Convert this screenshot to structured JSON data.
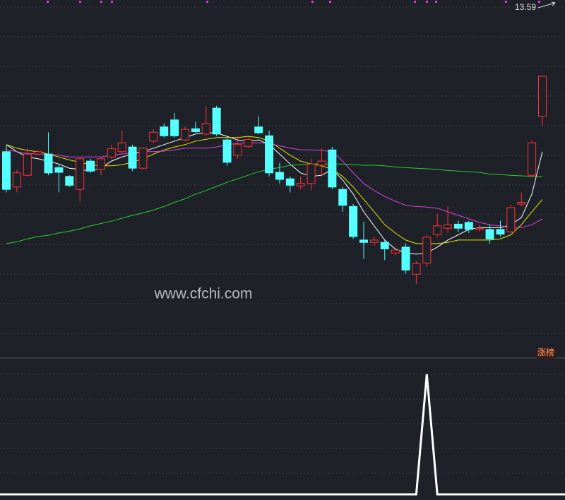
{
  "chart_data": [
    {
      "type": "candlestick",
      "categories": [
        null,
        null,
        null,
        null,
        null,
        null,
        null,
        null,
        null,
        null,
        null,
        null,
        null,
        null,
        null,
        null,
        null,
        null,
        null,
        null,
        null,
        null,
        null,
        null,
        null,
        null,
        null,
        null,
        null,
        null,
        null,
        null,
        null,
        null,
        null,
        null,
        null,
        null,
        null,
        null,
        null,
        null,
        null,
        null,
        null,
        null,
        null,
        null,
        null,
        null,
        null,
        null
      ],
      "open": [
        11.11,
        10.51,
        10.71,
        11.07,
        11.07,
        10.84,
        10.69,
        10.47,
        10.95,
        10.81,
        11.02,
        11.11,
        11.19,
        10.83,
        11.29,
        11.53,
        11.65,
        11.31,
        11.5,
        11.41,
        11.85,
        11.31,
        11.05,
        11.2,
        11.53,
        11.38,
        10.76,
        10.65,
        10.53,
        10.57,
        10.88,
        11.14,
        10.47,
        10.18,
        9.61,
        9.57,
        9.57,
        9.39,
        9.49,
        9.03,
        9.22,
        9.7,
        9.81,
        9.88,
        9.91,
        9.79,
        9.79,
        9.79,
        9.75,
        10.22,
        10.71,
        11.71
      ],
      "high": [
        11.23,
        10.8,
        11.17,
        11.14,
        11.44,
        10.9,
        10.71,
        11.02,
        10.99,
        11.02,
        11.23,
        11.47,
        11.23,
        11.19,
        11.49,
        11.59,
        11.77,
        11.53,
        11.62,
        11.89,
        11.89,
        11.35,
        11.37,
        11.35,
        11.71,
        11.47,
        10.92,
        10.69,
        10.69,
        10.99,
        11.17,
        11.19,
        10.51,
        10.22,
        9.92,
        9.66,
        9.61,
        9.49,
        9.55,
        9.25,
        9.7,
        10.06,
        10.18,
        9.94,
        9.94,
        9.87,
        9.87,
        9.94,
        10.21,
        10.42,
        11.31,
        12.39
      ],
      "low": [
        10.42,
        10.42,
        10.69,
        11.05,
        10.71,
        10.42,
        10.51,
        10.27,
        10.75,
        10.71,
        10.99,
        11.07,
        10.78,
        10.81,
        11.26,
        11.35,
        11.35,
        11.29,
        11.43,
        11.38,
        11.38,
        10.87,
        10.99,
        11.17,
        11.41,
        10.69,
        10.57,
        10.42,
        10.47,
        10.45,
        10.69,
        10.47,
        10.09,
        9.63,
        9.29,
        9.51,
        9.27,
        9.34,
        9.04,
        8.86,
        9.15,
        9.66,
        9.73,
        9.75,
        9.73,
        9.75,
        9.55,
        9.67,
        9.73,
        10.18,
        10.69,
        11.55
      ],
      "close": [
        10.47,
        10.75,
        11.07,
        11.11,
        10.75,
        10.76,
        10.54,
        10.99,
        10.78,
        10.99,
        11.16,
        11.26,
        10.83,
        11.17,
        11.44,
        11.38,
        11.38,
        11.49,
        11.45,
        11.59,
        11.41,
        10.93,
        11.23,
        11.32,
        11.43,
        10.75,
        10.64,
        10.54,
        10.57,
        10.9,
        10.95,
        10.51,
        10.2,
        9.67,
        9.57,
        9.61,
        9.46,
        9.44,
        9.1,
        9.21,
        9.66,
        9.85,
        9.87,
        9.81,
        9.79,
        9.81,
        9.63,
        9.71,
        10.16,
        10.25,
        11.26,
        12.39
      ],
      "up_color": "#ff3232",
      "down_color": "#54ffff",
      "series": [
        {
          "color": "#ffffff",
          "values": [
            11.23,
            11.11,
            11.02,
            10.99,
            10.95,
            10.9,
            10.83,
            10.81,
            10.78,
            10.83,
            10.95,
            11.02,
            11.07,
            11.11,
            11.17,
            11.23,
            11.29,
            11.35,
            11.41,
            11.43,
            11.43,
            11.37,
            11.31,
            11.29,
            11.31,
            11.23,
            11.07,
            10.9,
            10.75,
            10.69,
            10.71,
            10.81,
            10.63,
            10.39,
            10.09,
            9.85,
            9.61,
            9.46,
            9.39,
            9.37,
            9.39,
            9.49,
            9.61,
            9.7,
            9.79,
            9.82,
            9.82,
            9.82,
            9.87,
            9.99,
            10.39,
            11.11
          ]
        },
        {
          "color": "#e6e600",
          "values": [
            11.23,
            11.17,
            11.13,
            11.11,
            11.07,
            11.02,
            10.97,
            10.93,
            10.89,
            10.87,
            10.87,
            10.89,
            10.93,
            10.99,
            11.07,
            11.14,
            11.19,
            11.23,
            11.29,
            11.32,
            11.35,
            11.35,
            11.35,
            11.37,
            11.35,
            11.29,
            11.17,
            11.05,
            10.95,
            10.9,
            10.87,
            10.81,
            10.69,
            10.51,
            10.3,
            10.09,
            9.87,
            9.73,
            9.61,
            9.55,
            9.55,
            9.55,
            9.57,
            9.61,
            9.61,
            9.61,
            9.61,
            9.63,
            9.7,
            9.87,
            10.09,
            10.3
          ]
        },
        {
          "color": "#e040e0",
          "values": [
            11.14,
            11.11,
            11.08,
            11.07,
            11.07,
            11.05,
            11.02,
            11.02,
            11.02,
            11.02,
            11.05,
            11.07,
            11.09,
            11.11,
            11.11,
            11.12,
            11.14,
            11.17,
            11.17,
            11.17,
            11.19,
            11.23,
            11.25,
            11.26,
            11.26,
            11.25,
            11.21,
            11.17,
            11.14,
            11.14,
            11.13,
            11.11,
            10.95,
            10.75,
            10.57,
            10.45,
            10.35,
            10.27,
            10.2,
            10.18,
            10.17,
            10.15,
            10.09,
            10.03,
            9.97,
            9.91,
            9.87,
            9.85,
            9.82,
            9.82,
            9.87,
            9.97
          ]
        },
        {
          "color": "#2ecc2e",
          "values": [
            9.55,
            9.58,
            9.63,
            9.67,
            9.69,
            9.73,
            9.76,
            9.8,
            9.85,
            9.89,
            9.93,
            9.98,
            10.03,
            10.07,
            10.12,
            10.18,
            10.25,
            10.31,
            10.39,
            10.45,
            10.52,
            10.59,
            10.65,
            10.71,
            10.77,
            10.81,
            10.84,
            10.88,
            10.89,
            10.9,
            10.9,
            10.9,
            10.9,
            10.89,
            10.88,
            10.88,
            10.87,
            10.85,
            10.84,
            10.83,
            10.82,
            10.81,
            10.79,
            10.78,
            10.77,
            10.76,
            10.73,
            10.72,
            10.71,
            10.7,
            10.69,
            10.69
          ]
        }
      ],
      "ylim": [
        7.69,
        13.59
      ],
      "high_label": 13.59,
      "watermark": "www.cfchi.com",
      "tag": "涨榜"
    },
    {
      "type": "line",
      "categories": [
        null,
        null,
        null,
        null,
        null,
        null,
        null,
        null,
        null,
        null,
        null,
        null,
        null,
        null,
        null,
        null,
        null,
        null,
        null,
        null,
        null,
        null,
        null,
        null,
        null,
        null,
        null,
        null,
        null,
        null,
        null,
        null,
        null,
        null,
        null,
        null,
        null,
        null,
        null,
        null,
        null,
        null,
        null,
        null,
        null,
        null,
        null,
        null,
        null,
        null,
        null,
        null
      ],
      "series": [
        {
          "color": "#ffffff",
          "values": [
            0,
            0,
            0,
            0,
            0,
            0,
            0,
            0,
            0,
            0,
            0,
            0,
            0,
            0,
            0,
            0,
            0,
            0,
            0,
            0,
            0,
            0,
            0,
            0,
            0,
            0,
            0,
            0,
            0,
            0,
            0,
            0,
            0,
            0,
            0,
            0,
            0,
            0,
            0,
            0,
            1,
            0,
            0,
            0,
            0,
            0,
            0,
            0,
            0,
            0,
            0,
            0
          ]
        }
      ],
      "ylim": [
        0,
        1
      ]
    }
  ]
}
